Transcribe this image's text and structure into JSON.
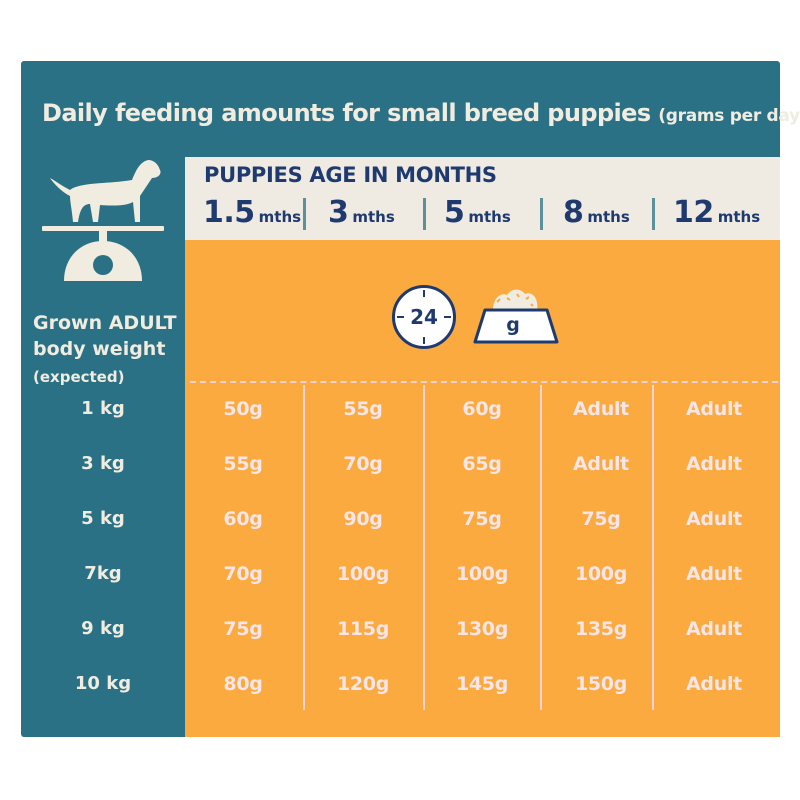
{
  "title": {
    "main": "Daily feeding amounts for small breed puppies",
    "unit": "(grams per day):"
  },
  "header": {
    "title": "PUPPIES AGE IN MONTHS",
    "ages": [
      {
        "num": "1.5",
        "unit": "mths"
      },
      {
        "num": "3",
        "unit": "mths"
      },
      {
        "num": "5",
        "unit": "mths"
      },
      {
        "num": "8",
        "unit": "mths"
      },
      {
        "num": "12",
        "unit": "mths"
      }
    ]
  },
  "icons": {
    "clock_label": "24",
    "bowl_label": "g"
  },
  "side": {
    "line1": "Grown ADULT",
    "line2": "body weight",
    "line3": "(expected)"
  },
  "rows": [
    {
      "weight": "1 kg",
      "values": [
        "50g",
        "55g",
        "60g",
        "Adult",
        "Adult"
      ]
    },
    {
      "weight": "3 kg",
      "values": [
        "55g",
        "70g",
        "65g",
        "Adult",
        "Adult"
      ]
    },
    {
      "weight": "5 kg",
      "values": [
        "60g",
        "90g",
        "75g",
        "75g",
        "Adult"
      ]
    },
    {
      "weight": "7kg",
      "values": [
        "70g",
        "100g",
        "100g",
        "100g",
        "Adult"
      ]
    },
    {
      "weight": "9 kg",
      "values": [
        "75g",
        "115g",
        "130g",
        "135g",
        "Adult"
      ]
    },
    {
      "weight": "10 kg",
      "values": [
        "80g",
        "120g",
        "145g",
        "150g",
        "Adult"
      ]
    }
  ],
  "colors": {
    "panel": "#2a7186",
    "table_body": "#fbaa3f",
    "header_band": "#efebe2",
    "header_text": "#1f3a6e",
    "cell_text": "#f7e5e8"
  }
}
